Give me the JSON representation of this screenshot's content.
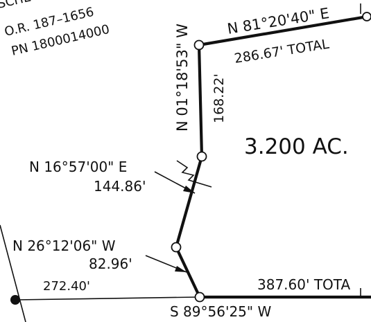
{
  "owner_name_partial": "SCHECK, TH",
  "deed_reference": "O.R. 187–1656",
  "parcel_number": "PN 1800014000",
  "area_label": "3.200 AC.",
  "courses": {
    "top_bearing": "N 81°20'40\" E",
    "top_distance": "286.67' TOTAL",
    "north_leg_bearing": "N 01°18'53\" W",
    "north_leg_distance": "168.22'",
    "middle_leg_bearing": "N 16°57'00\" E",
    "middle_leg_distance": "144.86'",
    "lower_leg_bearing": "N 26°12'06\" W",
    "lower_leg_distance": "82.96'",
    "bottom_bearing": "S 89°56'25\" W",
    "bottom_distance": "387.60' TOTA",
    "west_distance": "272.40'"
  }
}
